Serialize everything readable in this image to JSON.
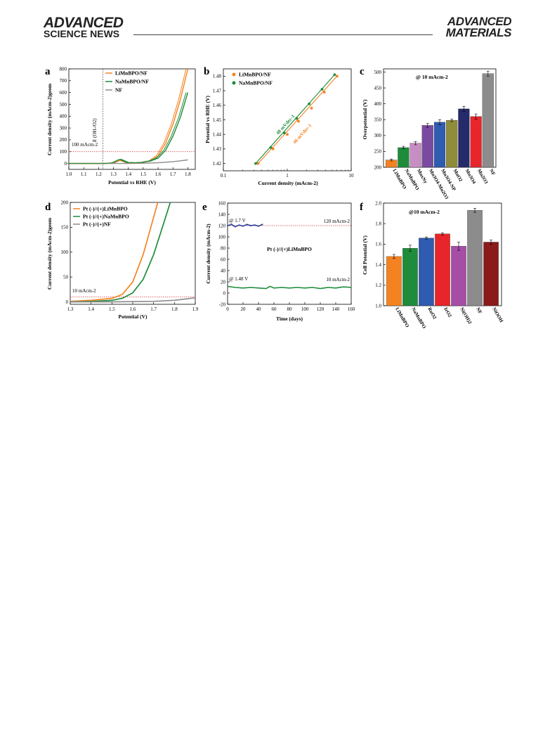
{
  "header": {
    "left_line1": "ADVANCED",
    "left_line2": "SCIENCE NEWS",
    "right_line1": "ADVANCED",
    "right_line2": "MATERIALS"
  },
  "colors": {
    "orange": "#f58220",
    "green": "#1e8c3a",
    "gray": "#8c8c8c",
    "blue": "#2b3f9c",
    "red": "#e8252a"
  },
  "panels": {
    "a": {
      "letter": "a",
      "xlabel": "Potential vs RHE (V)",
      "ylabel": "Current density (mAcm-2)geom",
      "annotation_vertical": "E (OH-/O2)",
      "annotation_line": "100 mAcm-2",
      "legend": [
        "LiMnBPO/NF",
        "NaMnBPO/NF",
        "NF"
      ],
      "xticks": [
        "1.0",
        "1.1",
        "1.2",
        "1.3",
        "1.4",
        "1.5",
        "1.6",
        "1.7",
        "1.8"
      ],
      "yticks": [
        "0",
        "100",
        "200",
        "300",
        "400",
        "500",
        "600",
        "700",
        "800"
      ]
    },
    "b": {
      "letter": "b",
      "xlabel": "Current density (mAcm-2)",
      "ylabel": "Potential vs RHE (V)",
      "legend": [
        "LiMnBPO/NF",
        "NaMnBPO/NF"
      ],
      "slope_green": "48 mVdec-1",
      "slope_orange": "46 mVdec-1",
      "xticks": [
        "0.1",
        "1",
        "10"
      ],
      "yticks": [
        "1.42",
        "1.43",
        "1.44",
        "1.45",
        "1.46",
        "1.47",
        "1.48"
      ]
    },
    "c": {
      "letter": "c",
      "annotation": "@ 10 mAcm-2",
      "ylabel": "Overpotential (V)",
      "yticks": [
        "200",
        "250",
        "300",
        "350",
        "400",
        "450",
        "500"
      ],
      "categories": [
        "LiMnBPO",
        "NaMnBPO",
        "MnxNy",
        "Mn3O4-Mn2O3",
        "Mn3O4-NP",
        "MnO2",
        "Mn3O4",
        "Mn2O3",
        "NF"
      ]
    },
    "d": {
      "letter": "d",
      "xlabel": "Potential (V)",
      "ylabel": "Current density (mAcm-2)geom",
      "annotation_line": "10 mAcm-2",
      "legend": [
        "Pt (-)//(+)LiMnBPO",
        "Pt (-)//(+)NaMnBPO",
        "Pt (-)//(+)NF"
      ],
      "xticks": [
        "1.3",
        "1.4",
        "1.5",
        "1.6",
        "1.7",
        "1.8",
        "1.9"
      ],
      "yticks": [
        "0",
        "50",
        "100",
        "150",
        "200"
      ]
    },
    "e": {
      "letter": "e",
      "xlabel": "Time (days)",
      "ylabel": "Current density (mAcm-2)",
      "label_top": "@ 1.7 V",
      "label_top_right": "120 mAcm-2",
      "label_bottom": "@ 1.48 V",
      "label_bottom_right": "10 mAcm-2",
      "center_text": "Pt (-)//(+)LiMnBPO",
      "xticks": [
        "0",
        "20",
        "40",
        "60",
        "80",
        "100",
        "120",
        "140",
        "160"
      ],
      "yticks": [
        "-20",
        "0",
        "20",
        "40",
        "60",
        "80",
        "100",
        "120",
        "140",
        "160"
      ]
    },
    "f": {
      "letter": "f",
      "annotation": "@10 mAcm-2",
      "ylabel": "Cell Potential (V)",
      "yticks": [
        "1.0",
        "1.2",
        "1.4",
        "1.6",
        "1.8",
        "2.0"
      ],
      "categories": [
        "LiMnBPO",
        "NaMnBPO",
        "RuO2",
        "IrO2",
        "Ni(OH)2",
        "NF",
        "NiOOH"
      ]
    }
  },
  "chart_data": [
    {
      "panel": "a",
      "type": "line",
      "xlim": [
        1.0,
        1.85
      ],
      "ylim": [
        -50,
        800
      ],
      "series": [
        {
          "name": "LiMnBPO/NF",
          "x": [
            1.0,
            1.2,
            1.25,
            1.3,
            1.35,
            1.4,
            1.45,
            1.5,
            1.55,
            1.6,
            1.65,
            1.7,
            1.75,
            1.8
          ],
          "values": [
            0,
            0,
            0,
            5,
            28,
            5,
            5,
            10,
            20,
            65,
            170,
            330,
            540,
            800
          ]
        },
        {
          "name": "NaMnBPO/NF",
          "x": [
            1.0,
            1.2,
            1.25,
            1.3,
            1.35,
            1.4,
            1.45,
            1.5,
            1.55,
            1.6,
            1.65,
            1.7,
            1.75,
            1.8
          ],
          "values": [
            0,
            0,
            0,
            5,
            35,
            8,
            6,
            10,
            22,
            45,
            110,
            230,
            390,
            600
          ]
        },
        {
          "name": "NF",
          "x": [
            1.0,
            1.2,
            1.4,
            1.5,
            1.6,
            1.7,
            1.8
          ],
          "values": [
            0,
            0,
            0,
            2,
            6,
            15,
            30
          ]
        }
      ],
      "reference_line_y": 100,
      "reference_line_x": 1.23
    },
    {
      "panel": "b",
      "type": "scatter",
      "xscale": "log",
      "xlim": [
        0.1,
        10
      ],
      "ylim": [
        1.415,
        1.485
      ],
      "series": [
        {
          "name": "LiMnBPO/NF",
          "x": [
            0.35,
            0.6,
            1.0,
            1.5,
            2.4,
            3.8,
            6.0
          ],
          "values": [
            1.42,
            1.43,
            1.44,
            1.449,
            1.458,
            1.469,
            1.48
          ]
        },
        {
          "name": "NaMnBPO/NF",
          "x": [
            0.32,
            0.55,
            0.9,
            1.4,
            2.2,
            3.5,
            5.5
          ],
          "values": [
            1.42,
            1.431,
            1.441,
            1.451,
            1.461,
            1.471,
            1.481
          ]
        }
      ]
    },
    {
      "panel": "c",
      "type": "bar",
      "ylim": [
        200,
        510
      ],
      "categories": [
        "LiMnBPO",
        "NaMnBPO",
        "MnxNy",
        "Mn3O4-Mn2O3",
        "Mn3O4-NP",
        "MnO2",
        "Mn3O4",
        "Mn2O3",
        "NF"
      ],
      "values": [
        223,
        262,
        276,
        332,
        342,
        348,
        384,
        360,
        495
      ],
      "errors": [
        3,
        4,
        5,
        6,
        8,
        4,
        8,
        8,
        8
      ]
    },
    {
      "panel": "d",
      "type": "line",
      "xlim": [
        1.3,
        1.9
      ],
      "ylim": [
        -5,
        200
      ],
      "series": [
        {
          "name": "Pt (-)//(+)LiMnBPO",
          "x": [
            1.3,
            1.4,
            1.5,
            1.55,
            1.6,
            1.65,
            1.7,
            1.72
          ],
          "values": [
            1,
            3,
            7,
            15,
            40,
            95,
            170,
            200
          ]
        },
        {
          "name": "Pt (-)//(+)NaMnBPO",
          "x": [
            1.3,
            1.4,
            1.5,
            1.55,
            1.6,
            1.65,
            1.7,
            1.75,
            1.78
          ],
          "values": [
            0,
            1,
            3,
            7,
            18,
            45,
            95,
            160,
            200
          ]
        },
        {
          "name": "Pt (-)//(+)NF",
          "x": [
            1.3,
            1.5,
            1.7,
            1.8,
            1.9
          ],
          "values": [
            0,
            0,
            1,
            3,
            8
          ]
        }
      ],
      "reference_line_y": 10
    },
    {
      "panel": "e",
      "type": "line",
      "xlim": [
        0,
        160
      ],
      "ylim": [
        -20,
        160
      ],
      "series": [
        {
          "name": "@ 1.7 V",
          "x": [
            0,
            5,
            10,
            15,
            20,
            25,
            30,
            35,
            40,
            45
          ],
          "values": [
            120,
            122,
            118,
            121,
            119,
            122,
            120,
            121,
            119,
            122
          ]
        },
        {
          "name": "@ 1.48 V",
          "x": [
            0,
            10,
            20,
            30,
            40,
            50,
            55,
            60,
            70,
            80,
            90,
            100,
            110,
            120,
            130,
            140,
            150,
            160
          ],
          "values": [
            12,
            10,
            9,
            10,
            9,
            8,
            12,
            9,
            10,
            9,
            10,
            9,
            10,
            8,
            10,
            9,
            11,
            10
          ]
        }
      ],
      "reference_line_y": 120
    },
    {
      "panel": "f",
      "type": "bar",
      "ylim": [
        1.0,
        2.0
      ],
      "categories": [
        "LiMnBPO",
        "NaMnBPO",
        "RuO2",
        "IrO2",
        "Ni(OH)2",
        "NF",
        "NiOOH"
      ],
      "values": [
        1.48,
        1.56,
        1.66,
        1.7,
        1.58,
        1.93,
        1.62
      ],
      "errors": [
        0.02,
        0.03,
        0.01,
        0.01,
        0.04,
        0.02,
        0.02
      ]
    }
  ]
}
